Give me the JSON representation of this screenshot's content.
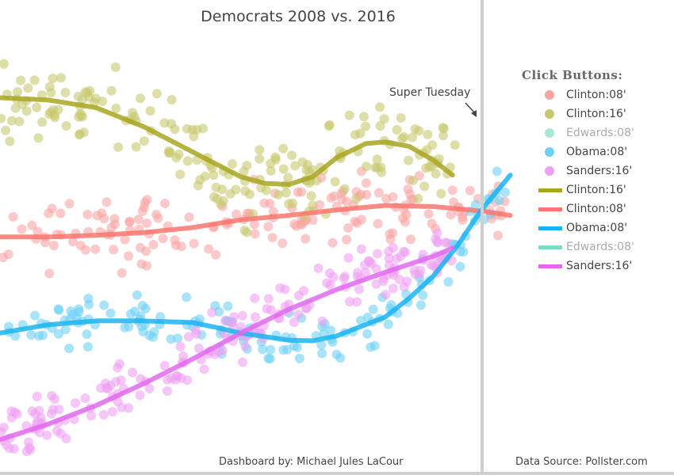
{
  "title": "Democrats 2008 vs. 2016",
  "annotation": "Super Tuesday",
  "footer": {
    "credit": "Dashboard by: Michael Jules LaCour",
    "source": "Data Source: Pollster.com"
  },
  "legend": {
    "title": "Click Buttons:",
    "items": [
      {
        "label": "Clinton:08'",
        "kind": "marker",
        "color": "#f8a5a5",
        "dimmed": false
      },
      {
        "label": "Clinton:16'",
        "kind": "marker",
        "color": "#c8c870",
        "dimmed": false
      },
      {
        "label": "Edwards:08'",
        "kind": "marker",
        "color": "#a9e8d4",
        "dimmed": true
      },
      {
        "label": "Obama:08'",
        "kind": "marker",
        "color": "#6fd0f5",
        "dimmed": false
      },
      {
        "label": "Sanders:16'",
        "kind": "marker",
        "color": "#eea0f2",
        "dimmed": false
      },
      {
        "label": "Clinton:16'",
        "kind": "line",
        "color": "#a8a620",
        "dimmed": false
      },
      {
        "label": "Clinton:08'",
        "kind": "line",
        "color": "#f8776e",
        "dimmed": false
      },
      {
        "label": "Obama:08'",
        "kind": "line",
        "color": "#1ab4f0",
        "dimmed": false
      },
      {
        "label": "Edwards:08'",
        "kind": "line",
        "color": "#7edcc0",
        "dimmed": true
      },
      {
        "label": "Sanders:16'",
        "kind": "line",
        "color": "#e268ee",
        "dimmed": false
      }
    ]
  },
  "chart_data": {
    "type": "scatter",
    "title": "Democrats 2008 vs. 2016",
    "xlabel": "",
    "ylabel": "",
    "xlim": [
      0,
      140
    ],
    "ylim": [
      0,
      86
    ],
    "grid": false,
    "legend_position": "right",
    "annotations": [
      {
        "text": "Super Tuesday",
        "x": 100
      }
    ],
    "series": [
      {
        "name": "Clinton:16'",
        "color": "#a8a620",
        "marker_color": "#c8c870",
        "trend_x": [
          0,
          10,
          20,
          30,
          40,
          50,
          55,
          60,
          65,
          70,
          76,
          80,
          85,
          90,
          94
        ],
        "trend_y": [
          68.3,
          67.9,
          66.5,
          63.0,
          58.5,
          54.0,
          52.8,
          52.6,
          54.0,
          57.5,
          60.0,
          60.3,
          59.5,
          57.0,
          54.3
        ],
        "spread": 9,
        "n_points": 200,
        "x_range": [
          0,
          95
        ]
      },
      {
        "name": "Clinton:08'",
        "color": "#f8776e",
        "marker_color": "#f8a5a5",
        "trend_x": [
          0,
          10,
          20,
          30,
          40,
          50,
          60,
          70,
          80,
          90,
          100,
          106
        ],
        "trend_y": [
          43.1,
          43.1,
          43.4,
          43.9,
          44.8,
          46.2,
          47.0,
          48.0,
          48.8,
          48.6,
          47.8,
          47.0
        ],
        "spread": 7,
        "n_points": 170,
        "x_range": [
          0,
          106
        ]
      },
      {
        "name": "Obama:08'",
        "color": "#1ab4f0",
        "marker_color": "#6fd0f5",
        "trend_x": [
          0,
          10,
          20,
          30,
          40,
          45,
          50,
          60,
          65,
          70,
          80,
          85,
          90,
          95,
          100,
          106
        ],
        "trend_y": [
          25.7,
          27.2,
          27.9,
          27.9,
          27.6,
          26.7,
          25.7,
          24.4,
          24.3,
          25.2,
          28.6,
          32.0,
          36.0,
          41.5,
          48.0,
          54.3
        ],
        "spread": 5,
        "n_points": 150,
        "x_range": [
          0,
          106
        ]
      },
      {
        "name": "Sanders:16'",
        "color": "#e268ee",
        "marker_color": "#eea0f2",
        "trend_x": [
          0,
          10,
          20,
          30,
          40,
          50,
          60,
          70,
          80,
          90,
          94
        ],
        "trend_y": [
          6.4,
          9.2,
          12.6,
          16.6,
          21.0,
          25.7,
          30.0,
          33.6,
          36.7,
          39.6,
          41.1
        ],
        "spread": 6,
        "n_points": 200,
        "x_range": [
          0,
          95
        ]
      },
      {
        "name": "Edwards:08'",
        "color": "#7edcc0",
        "marker_color": "#a9e8d4",
        "hidden": true
      }
    ]
  }
}
